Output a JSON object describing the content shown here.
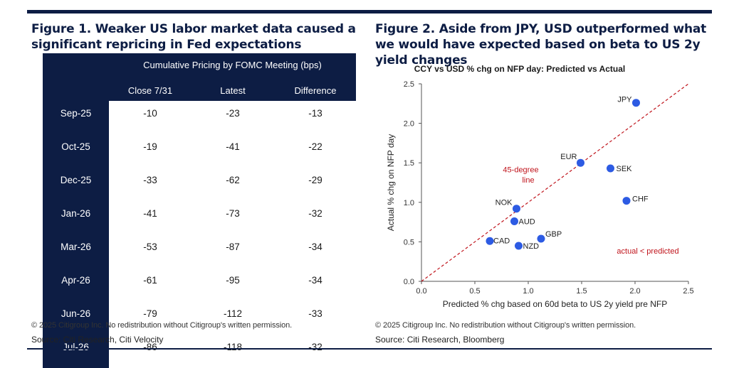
{
  "figure1": {
    "title": "Figure 1. Weaker US labor market data caused a significant repricing in Fed expectations",
    "super_header": "Cumulative Pricing by FOMC Meeting (bps)",
    "columns": [
      "Close 7/31",
      "Latest",
      "Difference"
    ],
    "rows": [
      {
        "meeting": "Sep-25",
        "close": "-10",
        "latest": "-23",
        "difference": "-13"
      },
      {
        "meeting": "Oct-25",
        "close": "-19",
        "latest": "-41",
        "difference": "-22"
      },
      {
        "meeting": "Dec-25",
        "close": "-33",
        "latest": "-62",
        "difference": "-29"
      },
      {
        "meeting": "Jan-26",
        "close": "-41",
        "latest": "-73",
        "difference": "-32"
      },
      {
        "meeting": "Mar-26",
        "close": "-53",
        "latest": "-87",
        "difference": "-34"
      },
      {
        "meeting": "Apr-26",
        "close": "-61",
        "latest": "-95",
        "difference": "-34"
      },
      {
        "meeting": "Jun-26",
        "close": "-79",
        "latest": "-112",
        "difference": "-33"
      },
      {
        "meeting": "Jul-26",
        "close": "-86",
        "latest": "-118",
        "difference": "-32"
      }
    ],
    "copyright": "© 2025 Citigroup Inc. No redistribution without Citigroup's written permission.",
    "source": "Source: Citi Research, Citi Velocity"
  },
  "figure2": {
    "title": "Figure 2. Aside from JPY, USD outperformed what we would have expected based on beta to US 2y yield changes",
    "copyright": "© 2025 Citigroup Inc. No redistribution without Citigroup's written permission.",
    "source": "Source: Citi Research, Bloomberg"
  },
  "colors": {
    "navy": "#0d1d44",
    "point": "#2d5be3",
    "reference_line": "#c0141c",
    "annotation": "#c0141c"
  },
  "chart_data": [
    {
      "type": "table",
      "title": "Cumulative Pricing by FOMC Meeting (bps)",
      "columns": [
        "Close 7/31",
        "Latest",
        "Difference"
      ],
      "row_labels": [
        "Sep-25",
        "Oct-25",
        "Dec-25",
        "Jan-26",
        "Mar-26",
        "Apr-26",
        "Jun-26",
        "Jul-26"
      ],
      "values": [
        [
          -10,
          -23,
          -13
        ],
        [
          -19,
          -41,
          -22
        ],
        [
          -33,
          -62,
          -29
        ],
        [
          -41,
          -73,
          -32
        ],
        [
          -53,
          -87,
          -34
        ],
        [
          -61,
          -95,
          -34
        ],
        [
          -79,
          -112,
          -33
        ],
        [
          -86,
          -118,
          -32
        ]
      ]
    },
    {
      "type": "scatter",
      "title": "CCY vs USD % chg on NFP  day: Predicted vs Actual",
      "xlabel": "Predicted % chg based on 60d beta to US 2y yield pre NFP",
      "ylabel": "Actual % chg on NFP day",
      "xlim": [
        0.0,
        2.5
      ],
      "ylim": [
        0.0,
        2.5
      ],
      "xticks": [
        "0.0",
        "0.5",
        "1.0",
        "1.5",
        "2.0",
        "2.5"
      ],
      "yticks": [
        "0.0",
        "0.5",
        "1.0",
        "1.5",
        "2.0",
        "2.5"
      ],
      "grid": false,
      "points": [
        {
          "label": "JPY",
          "x": 2.01,
          "y": 2.26
        },
        {
          "label": "EUR",
          "x": 1.49,
          "y": 1.5
        },
        {
          "label": "SEK",
          "x": 1.77,
          "y": 1.43
        },
        {
          "label": "CHF",
          "x": 1.92,
          "y": 1.02
        },
        {
          "label": "NOK",
          "x": 0.89,
          "y": 0.92
        },
        {
          "label": "AUD",
          "x": 0.87,
          "y": 0.76
        },
        {
          "label": "GBP",
          "x": 1.12,
          "y": 0.54
        },
        {
          "label": "CAD",
          "x": 0.64,
          "y": 0.51
        },
        {
          "label": "NZD",
          "x": 0.91,
          "y": 0.45
        }
      ],
      "reference_line": {
        "label": "45-degree line"
      },
      "annotations": [
        {
          "text": "45-degree",
          "x": 0.93,
          "y": 1.38
        },
        {
          "text": "line",
          "x": 1.0,
          "y": 1.25
        },
        {
          "text": "actual < predicted",
          "x": 2.12,
          "y": 0.35
        }
      ]
    }
  ]
}
